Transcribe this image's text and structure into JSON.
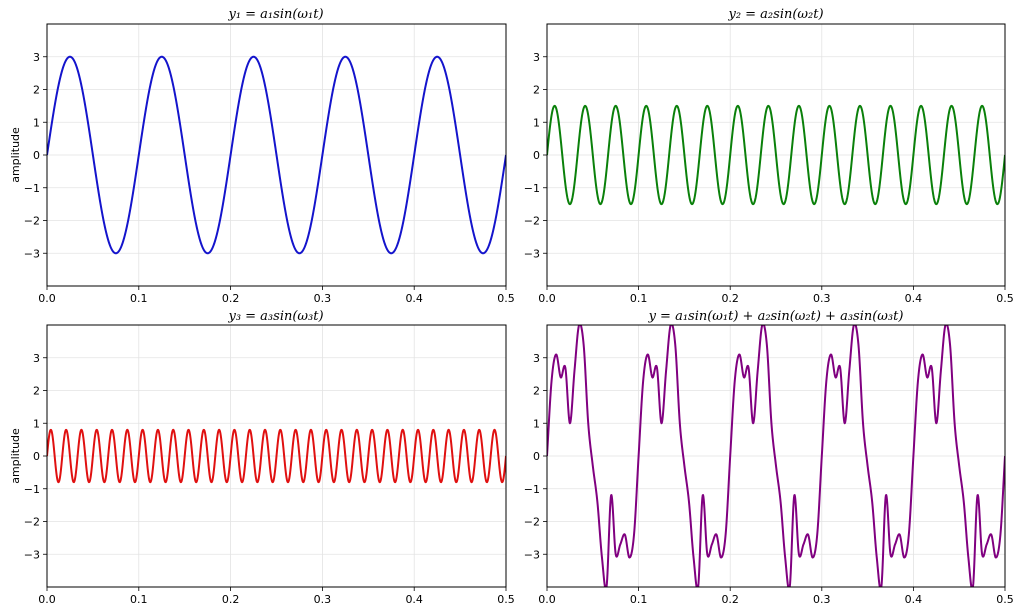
{
  "chart_data": [
    {
      "type": "line",
      "title": "y₁ = a₁sin(ω₁t)",
      "xlabel": "",
      "ylabel": "amplitude",
      "xlim": [
        0,
        0.5
      ],
      "ylim": [
        -4,
        4
      ],
      "xticks": [
        "0.0",
        "0.1",
        "0.2",
        "0.3",
        "0.4",
        "0.5"
      ],
      "yticks": [
        "3",
        "2",
        "1",
        "0",
        "−1",
        "−2",
        "−3"
      ],
      "grid": true,
      "series": [
        {
          "color": "#1414cc",
          "amplitude": 3,
          "frequency_hz": 10,
          "x": [
            0,
            0.025,
            0.05,
            0.075,
            0.1,
            0.125,
            0.15,
            0.175,
            0.2,
            0.225,
            0.25,
            0.275,
            0.3,
            0.325,
            0.35,
            0.375,
            0.4,
            0.425,
            0.45,
            0.475,
            0.5
          ],
          "y": [
            0,
            3,
            0,
            -3,
            0,
            3,
            0,
            -3,
            0,
            3,
            0,
            -3,
            0,
            3,
            0,
            -3,
            0,
            3,
            0,
            -3,
            0
          ]
        }
      ]
    },
    {
      "type": "line",
      "title": "y₂ = a₂sin(ω₂t)",
      "xlabel": "",
      "ylabel": "",
      "xlim": [
        0,
        0.5
      ],
      "ylim": [
        -4,
        4
      ],
      "xticks": [
        "0.0",
        "0.1",
        "0.2",
        "0.3",
        "0.4",
        "0.5"
      ],
      "yticks": [
        "3",
        "2",
        "1",
        "0",
        "−1",
        "−2",
        "−3"
      ],
      "grid": true,
      "series": [
        {
          "color": "#0a800a",
          "amplitude": 1.5,
          "frequency_hz": 30,
          "x": [
            0,
            0.00833,
            0.01667,
            0.025,
            0.03333,
            0.04167,
            0.05,
            0.05833,
            0.06667,
            0.075,
            0.08333
          ],
          "y": [
            0,
            1.5,
            0,
            -1.5,
            0,
            1.5,
            0,
            -1.5,
            0,
            1.5,
            0
          ]
        }
      ]
    },
    {
      "type": "line",
      "title": "y₃ = a₃sin(ω₃t)",
      "xlabel": "",
      "ylabel": "amplitude",
      "xlim": [
        0,
        0.5
      ],
      "ylim": [
        -4,
        4
      ],
      "xticks": [
        "0.0",
        "0.1",
        "0.2",
        "0.3",
        "0.4",
        "0.5"
      ],
      "yticks": [
        "3",
        "2",
        "1",
        "0",
        "−1",
        "−2",
        "−3"
      ],
      "grid": true,
      "series": [
        {
          "color": "#e01010",
          "amplitude": 0.8,
          "frequency_hz": 60,
          "x": [
            0,
            0.00417,
            0.00833,
            0.0125,
            0.01667,
            0.02083,
            0.025,
            0.02917,
            0.03333
          ],
          "y": [
            0,
            0.8,
            0,
            -0.8,
            0,
            0.8,
            0,
            -0.8,
            0
          ]
        }
      ]
    },
    {
      "type": "line",
      "title": "y = a₁sin(ω₁t) + a₂sin(ω₂t) + a₃sin(ω₃t)",
      "xlabel": "",
      "ylabel": "",
      "xlim": [
        0,
        0.5
      ],
      "ylim": [
        -4,
        4
      ],
      "xticks": [
        "0.0",
        "0.1",
        "0.2",
        "0.3",
        "0.4",
        "0.5"
      ],
      "yticks": [
        "3",
        "2",
        "1",
        "0",
        "−1",
        "−2",
        "−3"
      ],
      "grid": true,
      "series": [
        {
          "color": "#800080",
          "x": [
            0,
            0.005,
            0.01,
            0.015,
            0.02,
            0.025,
            0.03,
            0.035,
            0.04,
            0.045,
            0.05,
            0.055,
            0.06,
            0.065,
            0.07,
            0.075,
            0.08,
            0.085,
            0.09,
            0.095,
            0.1
          ],
          "y": [
            0,
            2.3,
            3.1,
            2.4,
            2.7,
            1.0,
            2.6,
            4.0,
            3.4,
            1.0,
            -0.3,
            -1.4,
            -3.1,
            -4.0,
            -1.2,
            -3.0,
            -2.7,
            -2.4,
            -3.1,
            -2.4,
            0
          ]
        }
      ]
    }
  ]
}
